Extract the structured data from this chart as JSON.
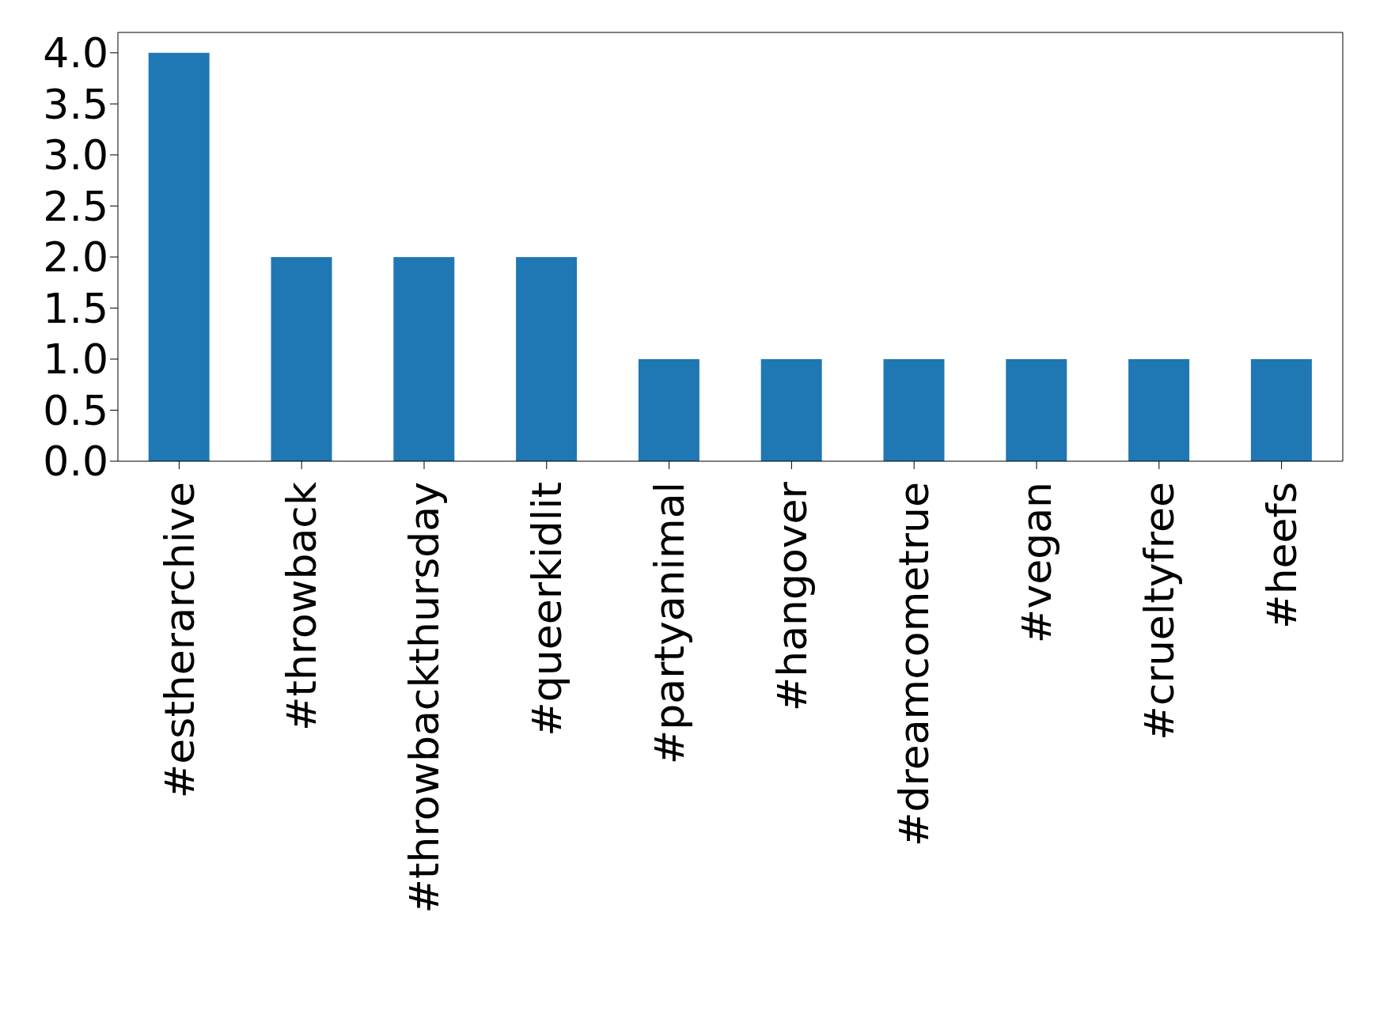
{
  "chart_data": {
    "type": "bar",
    "categories": [
      "#estherarchive",
      "#throwback",
      "#throwbackthursday",
      "#queerkidlit",
      "#partyanimal",
      "#hangover",
      "#dreamcometrue",
      "#vegan",
      "#crueltyfree",
      "#heefs"
    ],
    "values": [
      4,
      2,
      2,
      2,
      1,
      1,
      1,
      1,
      1,
      1
    ],
    "color": "#1f77b4",
    "ylim": [
      0,
      4.2
    ],
    "yticks": [
      {
        "value": 0,
        "label": "0.0"
      },
      {
        "value": 0.5,
        "label": "0.5"
      },
      {
        "value": 1,
        "label": "1.0"
      },
      {
        "value": 1.5,
        "label": "1.5"
      },
      {
        "value": 2,
        "label": "2.0"
      },
      {
        "value": 2.5,
        "label": "2.5"
      },
      {
        "value": 3,
        "label": "3.0"
      },
      {
        "value": 3.5,
        "label": "3.5"
      },
      {
        "value": 4,
        "label": "4.0"
      }
    ],
    "grid": false,
    "legend": false
  }
}
